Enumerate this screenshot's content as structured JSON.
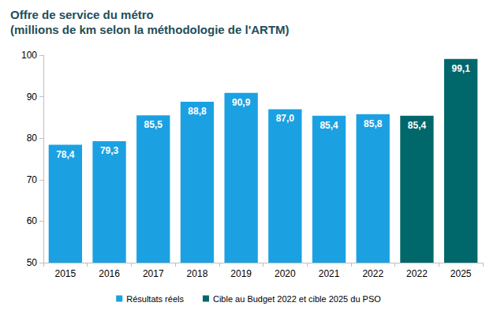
{
  "chart_data": {
    "type": "bar",
    "title": "Offre de service du métro\n(millions de km selon la méthodologie de l'ARTM)",
    "categories": [
      "2015",
      "2016",
      "2017",
      "2018",
      "2019",
      "2020",
      "2021",
      "2022",
      "2022",
      "2025"
    ],
    "series": [
      {
        "name": "Résultats réels",
        "color": "#1ba1e2",
        "values": [
          78.4,
          79.3,
          85.5,
          88.8,
          90.9,
          87.0,
          85.4,
          85.8,
          null,
          null
        ],
        "value_labels": [
          "78,4",
          "79,3",
          "85,5",
          "88,8",
          "90,9",
          "87,0",
          "85,4",
          "85,8",
          null,
          null
        ]
      },
      {
        "name": "Cible au Budget 2022 et cible 2025 du PSO",
        "color": "#00686b",
        "values": [
          null,
          null,
          null,
          null,
          null,
          null,
          null,
          null,
          85.4,
          99.1
        ],
        "value_labels": [
          null,
          null,
          null,
          null,
          null,
          null,
          null,
          null,
          "85,4",
          "99,1"
        ]
      }
    ],
    "ylim": [
      50,
      100
    ],
    "yticks": [
      50,
      60,
      70,
      80,
      90,
      100
    ],
    "grid": false,
    "legend": "bottom",
    "data_labels": true
  }
}
